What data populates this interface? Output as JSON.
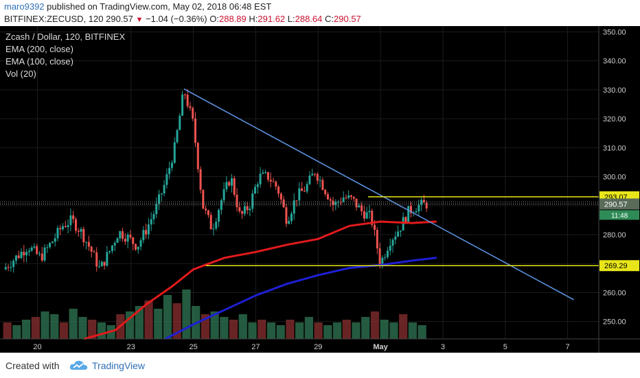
{
  "header": {
    "user": "maro9392",
    "published_text": "published on TradingView.com, May 02, 2018 06:48 EST",
    "symbol": "BITFINEX:ZECUSD, 120",
    "last": "290.57",
    "change": "−1.04 (−0.36%)",
    "o_label": "O:",
    "o_val": "288.89",
    "h_label": "H:",
    "h_val": "291.62",
    "l_label": "L:",
    "l_val": "288.64",
    "c_label": "C:",
    "c_val": "290.57"
  },
  "legend": {
    "title": "Zcash / Dollar, 120, BITFINEX",
    "ema200": "EMA (200, close)",
    "ema100": "EMA (100, close)",
    "vol": "Vol (20)"
  },
  "colors": {
    "bg": "#000000",
    "up": "#26a69a",
    "down": "#ef5350",
    "ema100": "#e31a1c",
    "ema200": "#1f1fd6",
    "trend": "#5b8fdb",
    "level": "#e8e61a",
    "axis_text": "#cfcfcf",
    "price_badge": "#5a6b5a",
    "timer_badge": "#2e8b57"
  },
  "footer": {
    "created": "Created with",
    "brand": "TradingView"
  },
  "chart_data": {
    "type": "candlestick",
    "title": "Zcash / Dollar, 120, BITFINEX",
    "y_ticks": [
      "350.00",
      "340.00",
      "330.00",
      "320.00",
      "310.00",
      "300.00",
      "290.00",
      "280.00",
      "270.00",
      "260.00",
      "250.00"
    ],
    "y_tick_values": [
      350,
      340,
      330,
      320,
      310,
      300,
      290,
      280,
      270,
      260,
      250
    ],
    "ylim": [
      244,
      352
    ],
    "x_ticks": [
      "20",
      "23",
      "25",
      "27",
      "29",
      "May",
      "3",
      "5",
      "7"
    ],
    "x_tick_days": [
      20,
      23,
      25,
      27,
      29,
      31,
      33,
      35,
      37
    ],
    "xlim": [
      18.8,
      38.0
    ],
    "levels": [
      {
        "label": "293.07",
        "value": 293.07
      },
      {
        "label": "269.29",
        "value": 269.29
      }
    ],
    "last_price": {
      "label": "290.57",
      "value": 290.57
    },
    "timer": "11:48",
    "trendline": {
      "start": {
        "day": 24.7,
        "value": 330.3
      },
      "end": {
        "day": 37.2,
        "value": 257.5
      }
    },
    "ema100_points": [
      [
        21.5,
        244
      ],
      [
        22.5,
        247
      ],
      [
        23.5,
        256
      ],
      [
        24.3,
        262
      ],
      [
        25.0,
        268
      ],
      [
        25.5,
        270
      ],
      [
        26.0,
        272
      ],
      [
        27.0,
        274
      ],
      [
        28.0,
        276.5
      ],
      [
        29.0,
        278.5
      ],
      [
        30.0,
        283
      ],
      [
        31.0,
        284.5
      ],
      [
        32.0,
        284
      ],
      [
        32.8,
        284.5
      ]
    ],
    "ema200_points": [
      [
        24.1,
        244
      ],
      [
        25.0,
        249
      ],
      [
        26.0,
        254
      ],
      [
        27.0,
        259
      ],
      [
        28.0,
        263
      ],
      [
        29.0,
        266
      ],
      [
        30.0,
        268.5
      ],
      [
        31.0,
        269.5
      ],
      [
        32.0,
        271
      ],
      [
        32.8,
        272
      ]
    ],
    "price_path": [
      [
        18.9,
        268
      ],
      [
        19.3,
        272
      ],
      [
        19.7,
        276
      ],
      [
        20.1,
        272
      ],
      [
        20.5,
        278
      ],
      [
        20.8,
        283
      ],
      [
        21.1,
        285
      ],
      [
        21.4,
        281
      ],
      [
        21.7,
        275
      ],
      [
        22.0,
        268
      ],
      [
        22.3,
        274
      ],
      [
        22.6,
        281
      ],
      [
        22.9,
        279
      ],
      [
        23.2,
        276
      ],
      [
        23.5,
        282
      ],
      [
        23.8,
        289
      ],
      [
        24.1,
        298
      ],
      [
        24.4,
        310
      ],
      [
        24.7,
        330
      ],
      [
        25.0,
        318
      ],
      [
        25.3,
        290
      ],
      [
        25.6,
        282
      ],
      [
        25.9,
        292
      ],
      [
        26.2,
        300
      ],
      [
        26.5,
        286
      ],
      [
        26.8,
        290
      ],
      [
        27.1,
        300
      ],
      [
        27.4,
        300
      ],
      [
        27.7,
        296
      ],
      [
        28.0,
        285
      ],
      [
        28.3,
        293
      ],
      [
        28.6,
        296
      ],
      [
        28.9,
        302
      ],
      [
        29.2,
        296
      ],
      [
        29.5,
        290
      ],
      [
        29.8,
        293
      ],
      [
        30.1,
        292
      ],
      [
        30.4,
        288
      ],
      [
        30.7,
        286
      ],
      [
        31.0,
        270
      ],
      [
        31.3,
        278
      ],
      [
        31.6,
        282
      ],
      [
        31.9,
        288
      ],
      [
        32.2,
        290
      ],
      [
        32.5,
        290.57
      ]
    ],
    "volume_note": "volume bars scaled 0-1",
    "volume": [
      0.3,
      0.25,
      0.35,
      0.4,
      0.5,
      0.45,
      0.3,
      0.55,
      0.4,
      0.35,
      0.3,
      0.25,
      0.45,
      0.5,
      0.6,
      0.7,
      0.55,
      0.8,
      0.65,
      0.9,
      0.6,
      0.45,
      0.5,
      0.4,
      0.35,
      0.45,
      0.3,
      0.35,
      0.3,
      0.25,
      0.35,
      0.3,
      0.4,
      0.3,
      0.25,
      0.3,
      0.35,
      0.3,
      0.4,
      0.5,
      0.35,
      0.3,
      0.45,
      0.3,
      0.25
    ]
  }
}
